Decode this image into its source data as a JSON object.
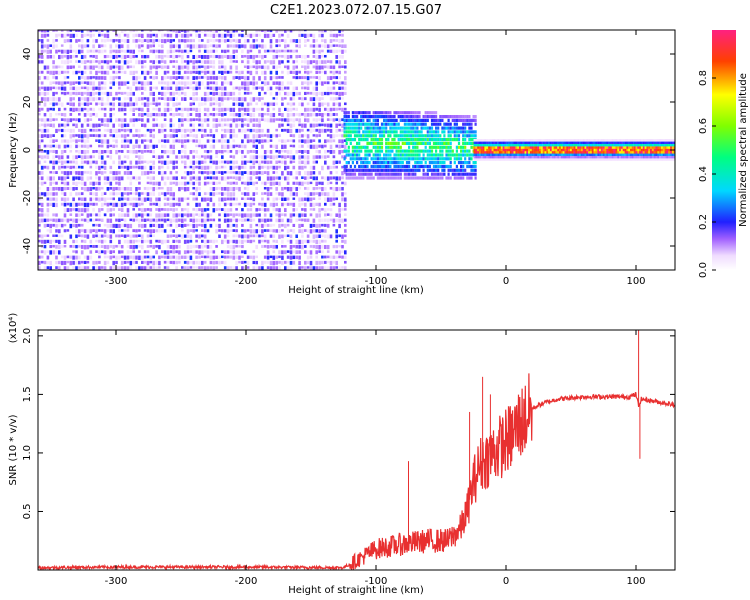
{
  "title": "C2E1.2023.072.07.15.G07",
  "chart_data": [
    {
      "type": "heatmap",
      "title": "C2E1.2023.072.07.15.G07",
      "xlabel": "Height of straight line (km)",
      "ylabel": "Frequency (Hz)",
      "xlim": [
        -360,
        130
      ],
      "ylim": [
        -50,
        50
      ],
      "x_ticks": [
        -300,
        -200,
        -100,
        0,
        100
      ],
      "x_tick_labels": [
        "-300",
        "-200",
        "-100",
        "0",
        "100"
      ],
      "y_ticks": [
        -40,
        -20,
        0,
        20,
        40
      ],
      "y_tick_labels": [
        "-40",
        "-20",
        "0",
        "20",
        "40"
      ],
      "colorbar": {
        "label": "Normalized spectral amplitude",
        "range": [
          0,
          1
        ],
        "ticks": [
          0,
          0.2,
          0.4,
          0.6,
          0.8
        ],
        "tick_labels": [
          "0.0",
          "0.2",
          "0.4",
          "0.6",
          "0.8"
        ]
      },
      "regions": [
        {
          "name": "noise",
          "x_range": [
            -360,
            -125
          ],
          "freq_range": [
            -50,
            50
          ],
          "amplitude": "low (0.0-0.2)"
        },
        {
          "name": "broad signal",
          "x_range": [
            -125,
            -25
          ],
          "freq_range": [
            -12,
            15
          ],
          "amplitude": "0.2-0.6"
        },
        {
          "name": "narrow carrier",
          "x_range": [
            -25,
            130
          ],
          "freq_center": 0,
          "amplitude": "0.7-1.0"
        }
      ]
    },
    {
      "type": "line",
      "xlabel": "Height of straight line (km)",
      "ylabel": "SNR (10 * v/v)",
      "y_scale_label": "(x10⁴)",
      "xlim": [
        -360,
        130
      ],
      "ylim": [
        0,
        2.05
      ],
      "x_ticks": [
        -300,
        -200,
        -100,
        0,
        100
      ],
      "x_tick_labels": [
        "-300",
        "-200",
        "-100",
        "0",
        "100"
      ],
      "y_ticks": [
        0.5,
        1.0,
        1.5,
        2.0
      ],
      "y_tick_labels": [
        "0.5",
        "1.0",
        "1.5",
        "2.0"
      ],
      "color": "#e83030",
      "series": [
        {
          "name": "SNR",
          "x": [
            -360,
            -300,
            -200,
            -125,
            -115,
            -100,
            -80,
            -60,
            -45,
            -35,
            -30,
            -25,
            -20,
            -15,
            -10,
            -5,
            0,
            5,
            10,
            15,
            20,
            30,
            40,
            50,
            60,
            80,
            95,
            100,
            102,
            104,
            110,
            120,
            130
          ],
          "y": [
            0.02,
            0.025,
            0.025,
            0.02,
            0.08,
            0.18,
            0.22,
            0.25,
            0.25,
            0.35,
            0.5,
            0.75,
            0.9,
            0.95,
            1.0,
            1.05,
            1.1,
            1.15,
            1.25,
            1.3,
            1.38,
            1.43,
            1.46,
            1.47,
            1.48,
            1.48,
            1.48,
            1.5,
            1.4,
            1.46,
            1.45,
            1.43,
            1.41
          ]
        }
      ],
      "spikes": [
        {
          "x": -75,
          "y": 0.65
        },
        {
          "x": -75,
          "y": 0.93
        },
        {
          "x": -28,
          "y": 1.35
        },
        {
          "x": -18,
          "y": 1.65
        },
        {
          "x": -12,
          "y": 1.5
        },
        {
          "x": 102,
          "y": 2.05
        },
        {
          "x": 103,
          "y": 0.95
        }
      ]
    }
  ]
}
